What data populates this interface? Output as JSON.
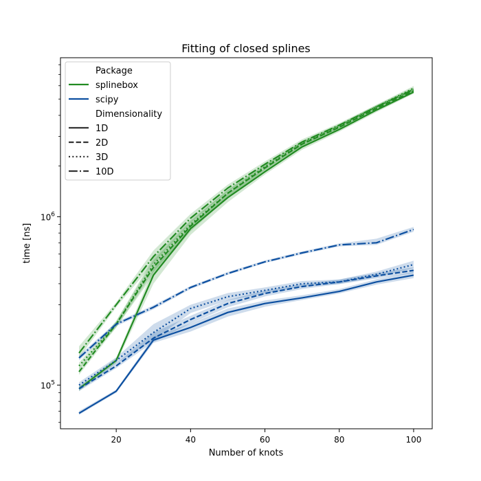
{
  "chart_data": {
    "type": "line",
    "title": "Fitting of closed splines",
    "xlabel": "Number of knots",
    "ylabel": "time [ns]",
    "y_scale": "log",
    "xlim": [
      5,
      105
    ],
    "ylim": [
      55000,
      8800000
    ],
    "x_ticks": [
      20,
      40,
      60,
      80,
      100
    ],
    "y_major_ticks": [
      {
        "value": 100000,
        "base": "10",
        "exp": "5"
      },
      {
        "value": 1000000,
        "base": "10",
        "exp": "6"
      }
    ],
    "grid": false,
    "legend_position": "top-left",
    "legend": {
      "hue_title": "Package",
      "style_title": "Dimensionality",
      "packages": [
        {
          "label": "splinebox",
          "color": "#228b22"
        },
        {
          "label": "scipy",
          "color": "#0c4fa0"
        }
      ],
      "dims": [
        {
          "label": "1D",
          "dash": "solid"
        },
        {
          "label": "2D",
          "dash": "dashed"
        },
        {
          "label": "3D",
          "dash": "dotted"
        },
        {
          "label": "10D",
          "dash": "dashdot"
        }
      ]
    },
    "x": [
      10,
      20,
      30,
      40,
      50,
      60,
      70,
      80,
      90,
      100
    ],
    "series": [
      {
        "package": "splinebox",
        "dim": "1D",
        "color": "#228b22",
        "dash": "solid",
        "values": [
          95000,
          140000,
          450000,
          850000,
          1300000,
          1850000,
          2600000,
          3300000,
          4300000,
          5500000
        ],
        "ci_low": [
          92000,
          135000,
          400000,
          780000,
          1220000,
          1780000,
          2500000,
          3200000,
          4180000,
          5380000
        ],
        "ci_high": [
          98000,
          145000,
          490000,
          900000,
          1380000,
          1930000,
          2700000,
          3420000,
          4420000,
          5650000
        ]
      },
      {
        "package": "splinebox",
        "dim": "2D",
        "color": "#228b22",
        "dash": "dashed",
        "values": [
          120000,
          230000,
          500000,
          880000,
          1380000,
          1950000,
          2700000,
          3400000,
          4400000,
          5600000
        ],
        "ci_low": [
          115000,
          220000,
          450000,
          820000,
          1300000,
          1860000,
          2600000,
          3300000,
          4280000,
          5450000
        ],
        "ci_high": [
          126000,
          240000,
          550000,
          940000,
          1440000,
          2020000,
          2800000,
          3520000,
          4550000,
          5780000
        ]
      },
      {
        "package": "splinebox",
        "dim": "3D",
        "color": "#228b22",
        "dash": "dotted",
        "values": [
          130000,
          230000,
          520000,
          900000,
          1380000,
          1980000,
          2720000,
          3450000,
          4500000,
          5800000
        ],
        "ci_low": [
          124000,
          220000,
          470000,
          840000,
          1300000,
          1900000,
          2630000,
          3350000,
          4380000,
          5650000
        ],
        "ci_high": [
          136000,
          240000,
          570000,
          960000,
          1450000,
          2060000,
          2820000,
          3550000,
          4620000,
          5980000
        ]
      },
      {
        "package": "splinebox",
        "dim": "10D",
        "color": "#228b22",
        "dash": "dashdot",
        "values": [
          155000,
          300000,
          580000,
          980000,
          1480000,
          2050000,
          2780000,
          3500000,
          4500000,
          5700000
        ],
        "ci_low": [
          145000,
          290000,
          530000,
          920000,
          1410000,
          1980000,
          2700000,
          3400000,
          4400000,
          5580000
        ],
        "ci_high": [
          170000,
          310000,
          630000,
          1040000,
          1550000,
          2130000,
          2880000,
          3600000,
          4620000,
          5850000
        ]
      },
      {
        "package": "scipy",
        "dim": "1D",
        "color": "#0c4fa0",
        "dash": "solid",
        "values": [
          68000,
          92000,
          185000,
          220000,
          270000,
          305000,
          330000,
          360000,
          410000,
          450000
        ],
        "ci_low": [
          66500,
          90000,
          178000,
          208000,
          255000,
          292000,
          320000,
          350000,
          395000,
          432000
        ],
        "ci_high": [
          70000,
          94000,
          193000,
          232000,
          285000,
          318000,
          342000,
          372000,
          425000,
          470000
        ]
      },
      {
        "package": "scipy",
        "dim": "2D",
        "color": "#0c4fa0",
        "dash": "dashed",
        "values": [
          95000,
          130000,
          190000,
          245000,
          305000,
          350000,
          385000,
          410000,
          445000,
          480000
        ],
        "ci_low": [
          92000,
          126000,
          180000,
          232000,
          290000,
          336000,
          372000,
          398000,
          430000,
          462000
        ],
        "ci_high": [
          98000,
          134000,
          205000,
          258000,
          320000,
          364000,
          398000,
          424000,
          462000,
          500000
        ]
      },
      {
        "package": "scipy",
        "dim": "3D",
        "color": "#0c4fa0",
        "dash": "dotted",
        "values": [
          100000,
          140000,
          205000,
          285000,
          335000,
          365000,
          400000,
          410000,
          455000,
          520000
        ],
        "ci_low": [
          96000,
          134000,
          185000,
          268000,
          318000,
          350000,
          385000,
          398000,
          438000,
          495000
        ],
        "ci_high": [
          104000,
          146000,
          230000,
          300000,
          352000,
          380000,
          415000,
          424000,
          472000,
          548000
        ]
      },
      {
        "package": "scipy",
        "dim": "10D",
        "color": "#0c4fa0",
        "dash": "dashdot",
        "values": [
          145000,
          230000,
          290000,
          380000,
          460000,
          540000,
          610000,
          680000,
          700000,
          840000
        ],
        "ci_low": [
          140000,
          224000,
          282000,
          372000,
          452000,
          530000,
          598000,
          666000,
          680000,
          815000
        ],
        "ci_high": [
          150000,
          236000,
          298000,
          388000,
          470000,
          550000,
          622000,
          694000,
          740000,
          870000
        ]
      }
    ]
  }
}
